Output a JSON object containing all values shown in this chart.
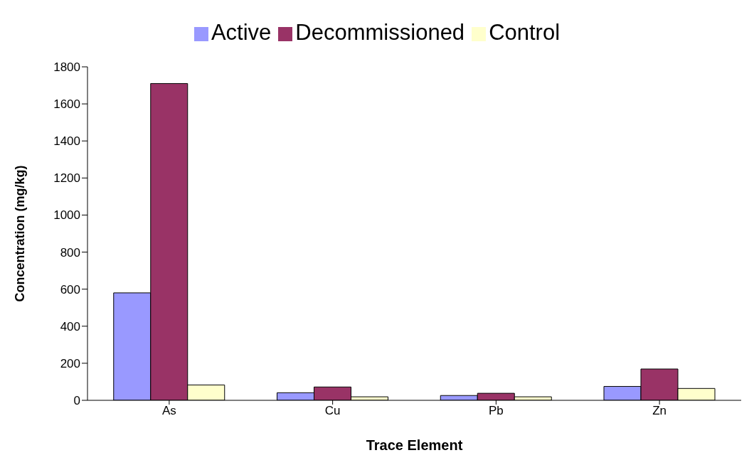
{
  "chart_data": {
    "type": "bar",
    "xlabel": "Trace Element",
    "ylabel": "Concentration (mg/kg)",
    "categories": [
      "As",
      "Cu",
      "Pb",
      "Zn"
    ],
    "series": [
      {
        "name": "Active",
        "color": "#9999ff",
        "values": [
          580,
          41,
          26,
          75
        ]
      },
      {
        "name": "Decommissioned",
        "color": "#993366",
        "values": [
          1710,
          72,
          38,
          169
        ]
      },
      {
        "name": "Control",
        "color": "#ffffcc",
        "values": [
          83,
          19,
          19,
          64
        ]
      }
    ],
    "ylim": [
      0,
      1800
    ],
    "yticks": [
      0,
      200,
      400,
      600,
      800,
      1000,
      1200,
      1400,
      1600,
      1800
    ],
    "grid": false,
    "legend": "top"
  }
}
